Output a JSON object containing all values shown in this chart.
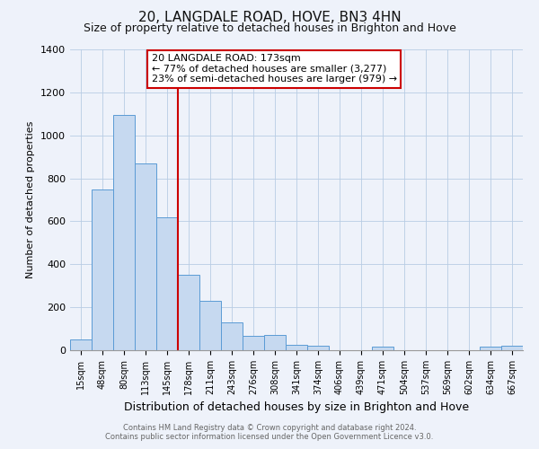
{
  "title": "20, LANGDALE ROAD, HOVE, BN3 4HN",
  "subtitle": "Size of property relative to detached houses in Brighton and Hove",
  "xlabel": "Distribution of detached houses by size in Brighton and Hove",
  "ylabel": "Number of detached properties",
  "bar_labels": [
    "15sqm",
    "48sqm",
    "80sqm",
    "113sqm",
    "145sqm",
    "178sqm",
    "211sqm",
    "243sqm",
    "276sqm",
    "308sqm",
    "341sqm",
    "374sqm",
    "406sqm",
    "439sqm",
    "471sqm",
    "504sqm",
    "537sqm",
    "569sqm",
    "602sqm",
    "634sqm",
    "667sqm"
  ],
  "bar_values": [
    50,
    750,
    1095,
    870,
    620,
    350,
    230,
    130,
    65,
    70,
    25,
    20,
    0,
    0,
    15,
    0,
    0,
    0,
    0,
    15,
    20
  ],
  "bar_color": "#c6d9f0",
  "bar_edgecolor": "#5b9bd5",
  "vline_x_index": 5,
  "vline_color": "#cc0000",
  "annotation_title": "20 LANGDALE ROAD: 173sqm",
  "annotation_line1": "← 77% of detached houses are smaller (3,277)",
  "annotation_line2": "23% of semi-detached houses are larger (979) →",
  "annotation_box_color": "#ffffff",
  "annotation_box_edgecolor": "#cc0000",
  "ylim": [
    0,
    1400
  ],
  "yticks": [
    0,
    200,
    400,
    600,
    800,
    1000,
    1200,
    1400
  ],
  "footer1": "Contains HM Land Registry data © Crown copyright and database right 2024.",
  "footer2": "Contains public sector information licensed under the Open Government Licence v3.0.",
  "background_color": "#eef2fa",
  "title_fontsize": 11,
  "subtitle_fontsize": 9,
  "xlabel_fontsize": 9,
  "ylabel_fontsize": 8,
  "tick_fontsize": 7,
  "annotation_fontsize": 8,
  "footer_fontsize": 6
}
